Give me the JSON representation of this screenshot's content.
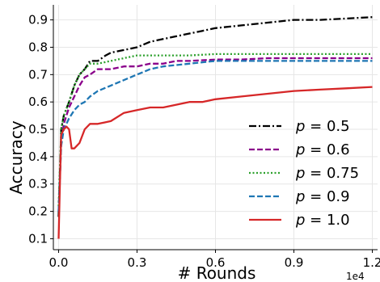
{
  "chart_data": {
    "type": "line",
    "xlabel": "# Rounds",
    "ylabel": "Accuracy",
    "x_exponent_label": "1e4",
    "xlim": [
      -0.02,
      1.22
    ],
    "ylim": [
      0.06,
      0.955
    ],
    "x_ticks": [
      0.0,
      0.3,
      0.6,
      0.9,
      1.2
    ],
    "x_tick_labels": [
      "0.0",
      "0.3",
      "0.6",
      "0.9",
      "1.2"
    ],
    "y_ticks": [
      0.1,
      0.2,
      0.3,
      0.4,
      0.5,
      0.6,
      0.7,
      0.8,
      0.9
    ],
    "y_tick_labels": [
      "0.1",
      "0.2",
      "0.3",
      "0.4",
      "0.5",
      "0.6",
      "0.7",
      "0.8",
      "0.9"
    ],
    "grid": true,
    "legend_position": "lower-right",
    "series": [
      {
        "name": "p = 0.5",
        "name_var": "p",
        "name_value": "= 0.5",
        "color": "#000000",
        "dash": "dashdot",
        "points": [
          [
            0.0,
            0.18
          ],
          [
            0.01,
            0.5
          ],
          [
            0.02,
            0.55
          ],
          [
            0.04,
            0.6
          ],
          [
            0.06,
            0.66
          ],
          [
            0.08,
            0.7
          ],
          [
            0.1,
            0.72
          ],
          [
            0.12,
            0.75
          ],
          [
            0.15,
            0.75
          ],
          [
            0.18,
            0.77
          ],
          [
            0.2,
            0.78
          ],
          [
            0.25,
            0.79
          ],
          [
            0.3,
            0.8
          ],
          [
            0.35,
            0.82
          ],
          [
            0.4,
            0.83
          ],
          [
            0.45,
            0.84
          ],
          [
            0.5,
            0.85
          ],
          [
            0.55,
            0.86
          ],
          [
            0.6,
            0.87
          ],
          [
            0.7,
            0.88
          ],
          [
            0.8,
            0.89
          ],
          [
            0.9,
            0.9
          ],
          [
            1.0,
            0.9
          ],
          [
            1.1,
            0.905
          ],
          [
            1.2,
            0.91
          ]
        ]
      },
      {
        "name": "p = 0.6",
        "name_var": "p",
        "name_value": "= 0.6",
        "color": "#8b008b",
        "dash": "dashed",
        "points": [
          [
            0.0,
            0.2
          ],
          [
            0.01,
            0.45
          ],
          [
            0.02,
            0.52
          ],
          [
            0.04,
            0.58
          ],
          [
            0.06,
            0.62
          ],
          [
            0.08,
            0.66
          ],
          [
            0.1,
            0.69
          ],
          [
            0.12,
            0.7
          ],
          [
            0.15,
            0.72
          ],
          [
            0.2,
            0.72
          ],
          [
            0.25,
            0.73
          ],
          [
            0.3,
            0.73
          ],
          [
            0.35,
            0.74
          ],
          [
            0.4,
            0.74
          ],
          [
            0.45,
            0.75
          ],
          [
            0.5,
            0.75
          ],
          [
            0.6,
            0.755
          ],
          [
            0.7,
            0.755
          ],
          [
            0.8,
            0.76
          ],
          [
            0.9,
            0.76
          ],
          [
            1.0,
            0.76
          ],
          [
            1.1,
            0.76
          ],
          [
            1.2,
            0.76
          ]
        ]
      },
      {
        "name": "p = 0.75",
        "name_var": "p",
        "name_value": "= 0.75",
        "color": "#2ca02c",
        "dash": "dotted",
        "points": [
          [
            0.0,
            0.22
          ],
          [
            0.01,
            0.5
          ],
          [
            0.02,
            0.55
          ],
          [
            0.04,
            0.6
          ],
          [
            0.06,
            0.66
          ],
          [
            0.08,
            0.7
          ],
          [
            0.1,
            0.72
          ],
          [
            0.12,
            0.74
          ],
          [
            0.15,
            0.74
          ],
          [
            0.2,
            0.75
          ],
          [
            0.25,
            0.76
          ],
          [
            0.3,
            0.77
          ],
          [
            0.35,
            0.77
          ],
          [
            0.4,
            0.77
          ],
          [
            0.5,
            0.77
          ],
          [
            0.6,
            0.775
          ],
          [
            0.7,
            0.775
          ],
          [
            0.8,
            0.775
          ],
          [
            0.9,
            0.775
          ],
          [
            1.0,
            0.775
          ],
          [
            1.1,
            0.775
          ],
          [
            1.2,
            0.775
          ]
        ]
      },
      {
        "name": "p = 0.9",
        "name_var": "p",
        "name_value": "= 0.9",
        "color": "#1f77b4",
        "dash": "dashed",
        "points": [
          [
            0.0,
            0.2
          ],
          [
            0.01,
            0.44
          ],
          [
            0.02,
            0.5
          ],
          [
            0.04,
            0.54
          ],
          [
            0.06,
            0.57
          ],
          [
            0.08,
            0.59
          ],
          [
            0.1,
            0.6
          ],
          [
            0.12,
            0.62
          ],
          [
            0.15,
            0.64
          ],
          [
            0.2,
            0.66
          ],
          [
            0.25,
            0.68
          ],
          [
            0.3,
            0.7
          ],
          [
            0.35,
            0.72
          ],
          [
            0.4,
            0.73
          ],
          [
            0.5,
            0.74
          ],
          [
            0.6,
            0.75
          ],
          [
            0.7,
            0.75
          ],
          [
            0.8,
            0.75
          ],
          [
            0.9,
            0.75
          ],
          [
            1.0,
            0.75
          ],
          [
            1.1,
            0.75
          ],
          [
            1.2,
            0.75
          ]
        ]
      },
      {
        "name": "p = 1.0",
        "name_var": "p",
        "name_value": "= 1.0",
        "color": "#d62728",
        "dash": "solid",
        "points": [
          [
            0.0,
            0.1
          ],
          [
            0.005,
            0.3
          ],
          [
            0.01,
            0.48
          ],
          [
            0.02,
            0.5
          ],
          [
            0.03,
            0.51
          ],
          [
            0.04,
            0.5
          ],
          [
            0.05,
            0.43
          ],
          [
            0.06,
            0.43
          ],
          [
            0.08,
            0.45
          ],
          [
            0.1,
            0.5
          ],
          [
            0.12,
            0.52
          ],
          [
            0.15,
            0.52
          ],
          [
            0.2,
            0.53
          ],
          [
            0.25,
            0.56
          ],
          [
            0.3,
            0.57
          ],
          [
            0.35,
            0.58
          ],
          [
            0.4,
            0.58
          ],
          [
            0.45,
            0.59
          ],
          [
            0.5,
            0.6
          ],
          [
            0.55,
            0.6
          ],
          [
            0.6,
            0.61
          ],
          [
            0.7,
            0.62
          ],
          [
            0.8,
            0.63
          ],
          [
            0.9,
            0.64
          ],
          [
            1.0,
            0.645
          ],
          [
            1.1,
            0.65
          ],
          [
            1.2,
            0.655
          ]
        ]
      }
    ]
  }
}
